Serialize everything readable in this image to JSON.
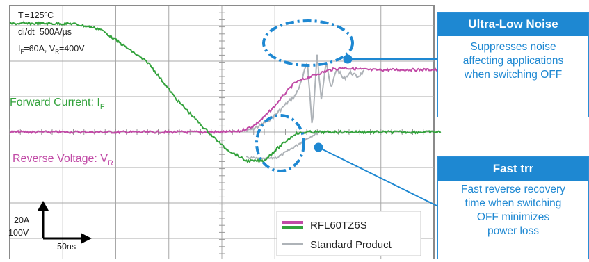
{
  "chart_data": {
    "type": "line",
    "title": "",
    "xlabel": "",
    "ylabel": "",
    "conditions": {
      "tj": "125ºC",
      "didt": "di/dt=500A/µs",
      "if_vr": "60A, V_R=400V"
    },
    "scale": {
      "current_per_div": "20A",
      "voltage_per_div": "100V",
      "time_per_div": "50ns"
    },
    "legend_position": "bottom-right",
    "grid": true,
    "series_labels": {
      "forward_current": {
        "text": "Forward Current: I",
        "sub": "F"
      },
      "reverse_voltage": {
        "text": "Reverse Voltage: V",
        "sub": "R"
      }
    },
    "series": [
      {
        "name": "RFL60TZ6S",
        "color": "#33a23c",
        "current_x": [
          0,
          90,
          130,
          200,
          240,
          280,
          310,
          340,
          365,
          385,
          410,
          430,
          450,
          480,
          520,
          560,
          620
        ],
        "current_y": [
          60,
          60,
          57,
          38,
          18,
          2,
          -9,
          -16,
          -16,
          -9,
          -1,
          0,
          0,
          0,
          0,
          0,
          0
        ],
        "voltage_x": [
          0,
          200,
          300,
          330,
          350,
          365,
          380,
          395,
          410,
          420,
          440,
          460,
          480,
          500,
          520,
          560,
          620
        ],
        "voltage_y": [
          0,
          0,
          0,
          2,
          28,
          68,
          118,
          178,
          232,
          245,
          270,
          292,
          302,
          296,
          292,
          293,
          293
        ]
      },
      {
        "name": "Standard Product",
        "color": "#aeb3b8",
        "current_x": [
          340,
          365,
          385,
          410,
          430,
          445,
          460
        ],
        "current_y": [
          -14,
          -15,
          -14,
          -8,
          -3,
          0,
          0
        ],
        "voltage_x": [
          340,
          360,
          380,
          400,
          410,
          420,
          428,
          435,
          442,
          448,
          455,
          462,
          470,
          480,
          490,
          500,
          510
        ],
        "voltage_y": [
          2,
          30,
          75,
          140,
          168,
          240,
          335,
          20,
          360,
          150,
          340,
          200,
          300,
          250,
          280,
          260,
          285
        ]
      }
    ],
    "callouts": [
      {
        "title": "Ultra-Low Noise",
        "lines": [
          "Suppresses noise",
          "affecting applications",
          "when switching OFF"
        ]
      },
      {
        "title": "Fast trr",
        "lines": [
          "Fast reverse recovery",
          "time when switching",
          "OFF minimizes",
          "power loss"
        ]
      }
    ]
  }
}
